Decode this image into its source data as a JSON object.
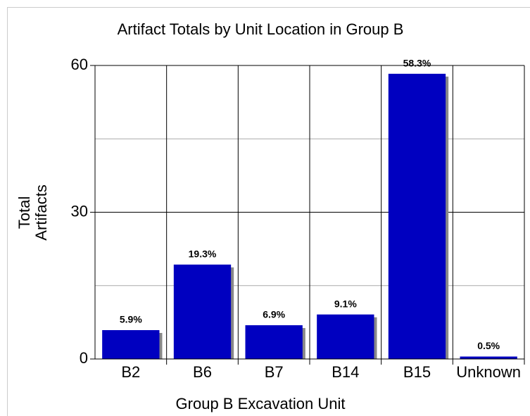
{
  "chart_data": {
    "type": "bar",
    "title": "Artifact Totals by Unit Location in Group B",
    "x_label": "Group B Excavation Unit",
    "y_label": [
      "Total",
      "Artifacts"
    ],
    "categories": [
      "B2",
      "B6",
      "B7",
      "B14",
      "B15",
      "Unknown"
    ],
    "values": [
      5.9,
      19.3,
      6.9,
      9.1,
      58.3,
      0.5
    ],
    "value_labels": [
      "5.9%",
      "19.3%",
      "6.9%",
      "9.1%",
      "58.3%",
      "0.5%"
    ],
    "color": "#0000c0",
    "ylim": [
      0,
      60
    ],
    "yticks": [
      0,
      30,
      60
    ],
    "yticks_minor": [
      15,
      45
    ],
    "grid": true
  }
}
